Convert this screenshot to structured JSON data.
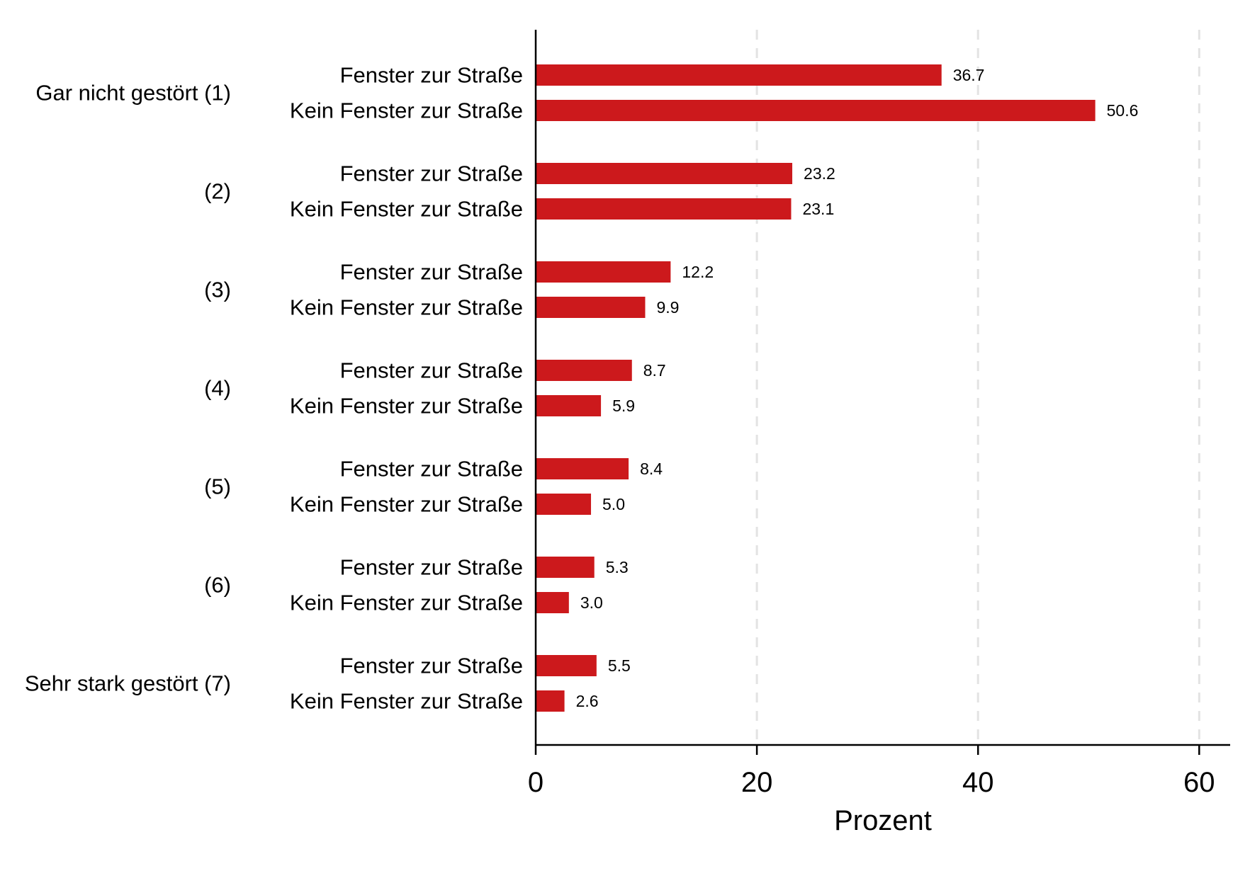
{
  "chart_data": {
    "type": "bar",
    "orientation": "horizontal",
    "xlabel": "Prozent",
    "xlim": [
      0,
      62.8
    ],
    "xticks": [
      0,
      20,
      40,
      60
    ],
    "grid": "vertical dashed",
    "bar_color": "#cc191c",
    "groups": [
      {
        "label": "Gar nicht gestört (1)",
        "bars": [
          {
            "label": "Fenster zur Straße",
            "value": 36.7,
            "value_label": "36.7"
          },
          {
            "label": "Kein Fenster zur Straße",
            "value": 50.6,
            "value_label": "50.6"
          }
        ]
      },
      {
        "label": "(2)",
        "bars": [
          {
            "label": "Fenster zur Straße",
            "value": 23.2,
            "value_label": "23.2"
          },
          {
            "label": "Kein Fenster zur Straße",
            "value": 23.1,
            "value_label": "23.1"
          }
        ]
      },
      {
        "label": "(3)",
        "bars": [
          {
            "label": "Fenster zur Straße",
            "value": 12.2,
            "value_label": "12.2"
          },
          {
            "label": "Kein Fenster zur Straße",
            "value": 9.9,
            "value_label": "9.9"
          }
        ]
      },
      {
        "label": "(4)",
        "bars": [
          {
            "label": "Fenster zur Straße",
            "value": 8.7,
            "value_label": "8.7"
          },
          {
            "label": "Kein Fenster zur Straße",
            "value": 5.9,
            "value_label": "5.9"
          }
        ]
      },
      {
        "label": "(5)",
        "bars": [
          {
            "label": "Fenster zur Straße",
            "value": 8.4,
            "value_label": "8.4"
          },
          {
            "label": "Kein Fenster zur Straße",
            "value": 5.0,
            "value_label": "5.0"
          }
        ]
      },
      {
        "label": "(6)",
        "bars": [
          {
            "label": "Fenster zur Straße",
            "value": 5.3,
            "value_label": "5.3"
          },
          {
            "label": "Kein Fenster zur Straße",
            "value": 3.0,
            "value_label": "3.0"
          }
        ]
      },
      {
        "label": "Sehr stark gestört (7)",
        "bars": [
          {
            "label": "Fenster zur Straße",
            "value": 5.5,
            "value_label": "5.5"
          },
          {
            "label": "Kein Fenster zur Straße",
            "value": 2.6,
            "value_label": "2.6"
          }
        ]
      }
    ]
  }
}
